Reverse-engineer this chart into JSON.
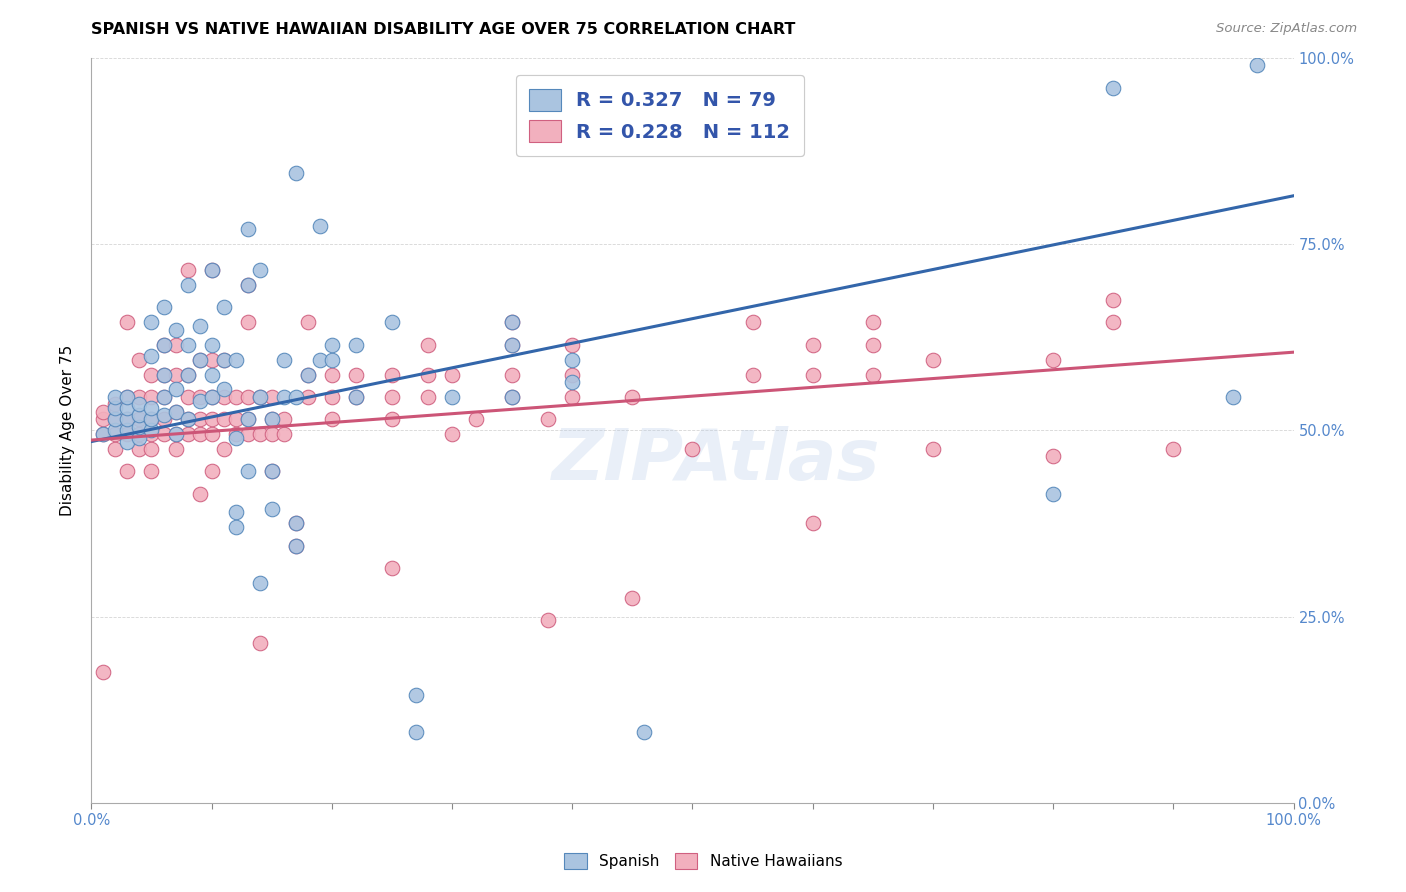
{
  "title": "SPANISH VS NATIVE HAWAIIAN DISABILITY AGE OVER 75 CORRELATION CHART",
  "source": "Source: ZipAtlas.com",
  "ylabel": "Disability Age Over 75",
  "xlim": [
    0.0,
    1.0
  ],
  "ylim": [
    0.0,
    1.0
  ],
  "ytick_labels": [
    "0.0%",
    "25.0%",
    "50.0%",
    "75.0%",
    "100.0%"
  ],
  "ytick_values": [
    0.0,
    0.25,
    0.5,
    0.75,
    1.0
  ],
  "watermark": "ZIPAtlas",
  "blue_R": "0.327",
  "blue_N": "79",
  "pink_R": "0.228",
  "pink_N": "112",
  "blue_color": "#aac4e0",
  "pink_color": "#f2b0be",
  "blue_edge_color": "#5588bb",
  "pink_edge_color": "#d06080",
  "blue_line_color": "#3366aa",
  "pink_line_color": "#cc5577",
  "legend_text_color": "#3355aa",
  "right_tick_color": "#5588cc",
  "blue_line_y0": 0.485,
  "blue_line_y1": 0.815,
  "pink_line_y0": 0.487,
  "pink_line_y1": 0.605,
  "blue_scatter": [
    [
      0.01,
      0.495
    ],
    [
      0.02,
      0.5
    ],
    [
      0.02,
      0.515
    ],
    [
      0.02,
      0.53
    ],
    [
      0.02,
      0.545
    ],
    [
      0.03,
      0.485
    ],
    [
      0.03,
      0.5
    ],
    [
      0.03,
      0.515
    ],
    [
      0.03,
      0.53
    ],
    [
      0.03,
      0.545
    ],
    [
      0.04,
      0.49
    ],
    [
      0.04,
      0.505
    ],
    [
      0.04,
      0.52
    ],
    [
      0.04,
      0.535
    ],
    [
      0.05,
      0.5
    ],
    [
      0.05,
      0.515
    ],
    [
      0.05,
      0.53
    ],
    [
      0.05,
      0.6
    ],
    [
      0.05,
      0.645
    ],
    [
      0.06,
      0.52
    ],
    [
      0.06,
      0.545
    ],
    [
      0.06,
      0.575
    ],
    [
      0.06,
      0.615
    ],
    [
      0.06,
      0.665
    ],
    [
      0.07,
      0.495
    ],
    [
      0.07,
      0.525
    ],
    [
      0.07,
      0.555
    ],
    [
      0.07,
      0.635
    ],
    [
      0.08,
      0.515
    ],
    [
      0.08,
      0.575
    ],
    [
      0.08,
      0.615
    ],
    [
      0.08,
      0.695
    ],
    [
      0.09,
      0.54
    ],
    [
      0.09,
      0.595
    ],
    [
      0.09,
      0.64
    ],
    [
      0.1,
      0.545
    ],
    [
      0.1,
      0.575
    ],
    [
      0.1,
      0.615
    ],
    [
      0.1,
      0.715
    ],
    [
      0.11,
      0.555
    ],
    [
      0.11,
      0.595
    ],
    [
      0.11,
      0.665
    ],
    [
      0.12,
      0.49
    ],
    [
      0.12,
      0.39
    ],
    [
      0.12,
      0.37
    ],
    [
      0.12,
      0.595
    ],
    [
      0.13,
      0.515
    ],
    [
      0.13,
      0.445
    ],
    [
      0.13,
      0.695
    ],
    [
      0.13,
      0.77
    ],
    [
      0.14,
      0.545
    ],
    [
      0.14,
      0.295
    ],
    [
      0.14,
      0.715
    ],
    [
      0.15,
      0.395
    ],
    [
      0.15,
      0.445
    ],
    [
      0.15,
      0.515
    ],
    [
      0.16,
      0.545
    ],
    [
      0.16,
      0.595
    ],
    [
      0.17,
      0.345
    ],
    [
      0.17,
      0.375
    ],
    [
      0.17,
      0.545
    ],
    [
      0.17,
      0.845
    ],
    [
      0.18,
      0.575
    ],
    [
      0.19,
      0.595
    ],
    [
      0.19,
      0.775
    ],
    [
      0.2,
      0.595
    ],
    [
      0.2,
      0.615
    ],
    [
      0.22,
      0.545
    ],
    [
      0.22,
      0.615
    ],
    [
      0.25,
      0.645
    ],
    [
      0.27,
      0.095
    ],
    [
      0.27,
      0.145
    ],
    [
      0.3,
      0.545
    ],
    [
      0.35,
      0.545
    ],
    [
      0.35,
      0.615
    ],
    [
      0.35,
      0.645
    ],
    [
      0.4,
      0.565
    ],
    [
      0.4,
      0.595
    ],
    [
      0.46,
      0.095
    ],
    [
      0.8,
      0.415
    ],
    [
      0.85,
      0.96
    ],
    [
      0.95,
      0.545
    ],
    [
      0.97,
      0.99
    ]
  ],
  "pink_scatter": [
    [
      0.01,
      0.175
    ],
    [
      0.01,
      0.495
    ],
    [
      0.01,
      0.515
    ],
    [
      0.01,
      0.525
    ],
    [
      0.02,
      0.475
    ],
    [
      0.02,
      0.495
    ],
    [
      0.02,
      0.515
    ],
    [
      0.02,
      0.535
    ],
    [
      0.03,
      0.445
    ],
    [
      0.03,
      0.495
    ],
    [
      0.03,
      0.515
    ],
    [
      0.03,
      0.545
    ],
    [
      0.03,
      0.645
    ],
    [
      0.04,
      0.475
    ],
    [
      0.04,
      0.495
    ],
    [
      0.04,
      0.515
    ],
    [
      0.04,
      0.545
    ],
    [
      0.04,
      0.595
    ],
    [
      0.05,
      0.445
    ],
    [
      0.05,
      0.475
    ],
    [
      0.05,
      0.495
    ],
    [
      0.05,
      0.515
    ],
    [
      0.05,
      0.545
    ],
    [
      0.05,
      0.575
    ],
    [
      0.06,
      0.495
    ],
    [
      0.06,
      0.515
    ],
    [
      0.06,
      0.545
    ],
    [
      0.06,
      0.575
    ],
    [
      0.06,
      0.615
    ],
    [
      0.07,
      0.475
    ],
    [
      0.07,
      0.495
    ],
    [
      0.07,
      0.525
    ],
    [
      0.07,
      0.575
    ],
    [
      0.07,
      0.615
    ],
    [
      0.08,
      0.495
    ],
    [
      0.08,
      0.515
    ],
    [
      0.08,
      0.545
    ],
    [
      0.08,
      0.575
    ],
    [
      0.08,
      0.715
    ],
    [
      0.09,
      0.415
    ],
    [
      0.09,
      0.495
    ],
    [
      0.09,
      0.515
    ],
    [
      0.09,
      0.545
    ],
    [
      0.09,
      0.595
    ],
    [
      0.1,
      0.445
    ],
    [
      0.1,
      0.495
    ],
    [
      0.1,
      0.515
    ],
    [
      0.1,
      0.545
    ],
    [
      0.1,
      0.595
    ],
    [
      0.1,
      0.715
    ],
    [
      0.11,
      0.475
    ],
    [
      0.11,
      0.515
    ],
    [
      0.11,
      0.545
    ],
    [
      0.11,
      0.595
    ],
    [
      0.12,
      0.495
    ],
    [
      0.12,
      0.515
    ],
    [
      0.12,
      0.545
    ],
    [
      0.13,
      0.495
    ],
    [
      0.13,
      0.515
    ],
    [
      0.13,
      0.545
    ],
    [
      0.13,
      0.645
    ],
    [
      0.13,
      0.695
    ],
    [
      0.14,
      0.495
    ],
    [
      0.14,
      0.545
    ],
    [
      0.14,
      0.215
    ],
    [
      0.15,
      0.445
    ],
    [
      0.15,
      0.495
    ],
    [
      0.15,
      0.515
    ],
    [
      0.15,
      0.545
    ],
    [
      0.16,
      0.495
    ],
    [
      0.16,
      0.515
    ],
    [
      0.17,
      0.345
    ],
    [
      0.17,
      0.375
    ],
    [
      0.18,
      0.545
    ],
    [
      0.18,
      0.575
    ],
    [
      0.18,
      0.645
    ],
    [
      0.2,
      0.515
    ],
    [
      0.2,
      0.545
    ],
    [
      0.2,
      0.575
    ],
    [
      0.22,
      0.545
    ],
    [
      0.22,
      0.575
    ],
    [
      0.25,
      0.515
    ],
    [
      0.25,
      0.545
    ],
    [
      0.25,
      0.575
    ],
    [
      0.25,
      0.315
    ],
    [
      0.28,
      0.545
    ],
    [
      0.28,
      0.575
    ],
    [
      0.28,
      0.615
    ],
    [
      0.3,
      0.495
    ],
    [
      0.3,
      0.575
    ],
    [
      0.32,
      0.515
    ],
    [
      0.35,
      0.545
    ],
    [
      0.35,
      0.575
    ],
    [
      0.35,
      0.615
    ],
    [
      0.35,
      0.645
    ],
    [
      0.38,
      0.515
    ],
    [
      0.38,
      0.245
    ],
    [
      0.4,
      0.545
    ],
    [
      0.4,
      0.575
    ],
    [
      0.4,
      0.615
    ],
    [
      0.45,
      0.545
    ],
    [
      0.45,
      0.275
    ],
    [
      0.5,
      0.475
    ],
    [
      0.55,
      0.575
    ],
    [
      0.55,
      0.645
    ],
    [
      0.6,
      0.375
    ],
    [
      0.6,
      0.575
    ],
    [
      0.6,
      0.615
    ],
    [
      0.65,
      0.575
    ],
    [
      0.65,
      0.615
    ],
    [
      0.65,
      0.645
    ],
    [
      0.7,
      0.595
    ],
    [
      0.7,
      0.475
    ],
    [
      0.8,
      0.595
    ],
    [
      0.8,
      0.465
    ],
    [
      0.85,
      0.645
    ],
    [
      0.85,
      0.675
    ],
    [
      0.9,
      0.475
    ]
  ]
}
